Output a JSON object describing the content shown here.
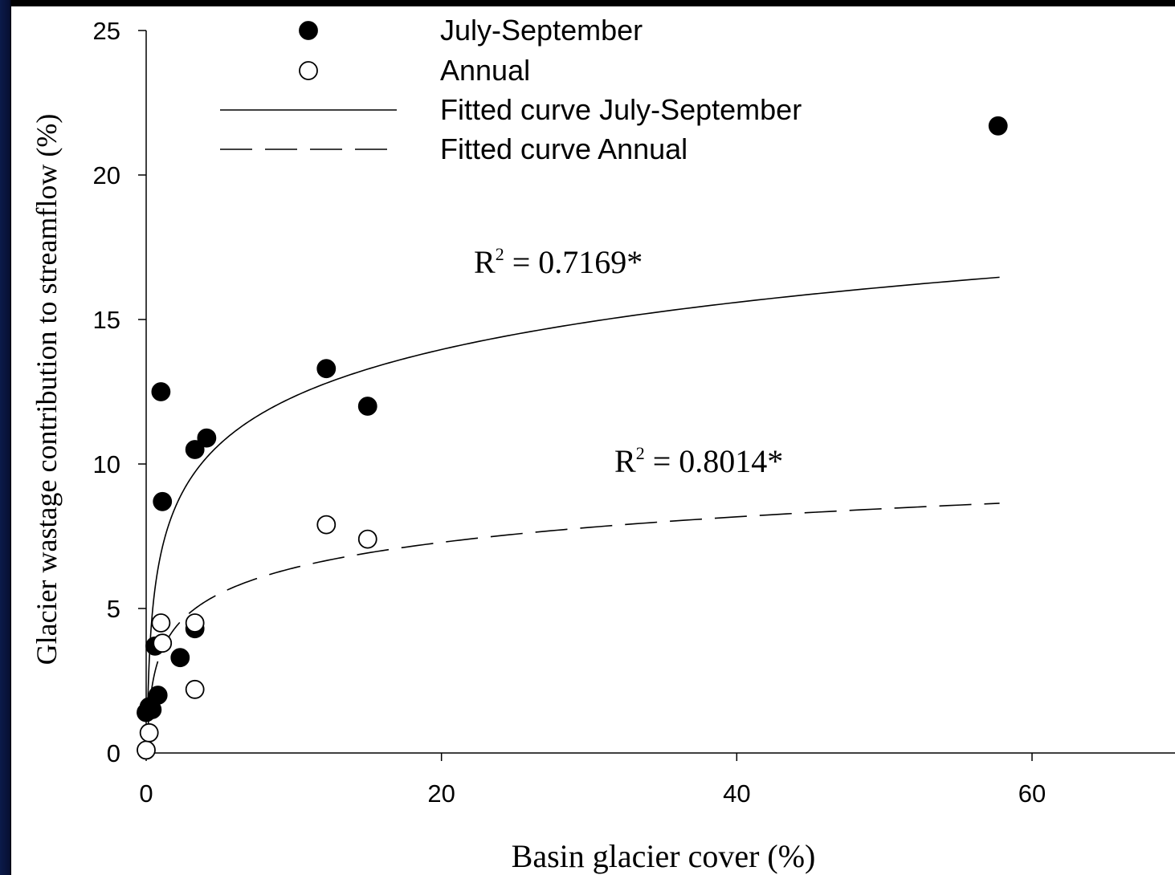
{
  "chart_data": {
    "type": "scatter",
    "title": "",
    "xlabel": "Basin glacier cover (%)",
    "ylabel": "Glacier wastage contribution to streamflow (%)",
    "xlim": [
      0,
      70
    ],
    "ylim": [
      0,
      25
    ],
    "xticks": [
      0,
      20,
      40,
      60
    ],
    "xtick_labels": [
      "0",
      "20",
      "40",
      "60"
    ],
    "yticks": [
      0,
      5,
      10,
      15,
      20,
      25
    ],
    "ytick_labels": [
      "0",
      "5",
      "10",
      "15",
      "20",
      "25"
    ],
    "grid": false,
    "legend_position": "top",
    "series": [
      {
        "name": "July-September",
        "marker": "filled-circle",
        "color": "#000000",
        "points": [
          [
            0.0,
            1.4
          ],
          [
            0.2,
            1.6
          ],
          [
            0.4,
            1.5
          ],
          [
            0.6,
            3.7
          ],
          [
            0.8,
            2.0
          ],
          [
            1.0,
            12.5
          ],
          [
            1.1,
            8.7
          ],
          [
            2.3,
            3.3
          ],
          [
            3.3,
            10.5
          ],
          [
            3.3,
            4.3
          ],
          [
            4.1,
            10.9
          ],
          [
            12.2,
            13.3
          ],
          [
            15.0,
            12.0
          ],
          [
            57.7,
            21.7
          ]
        ]
      },
      {
        "name": "Annual",
        "marker": "open-circle",
        "color": "#000000",
        "points": [
          [
            0.0,
            0.1
          ],
          [
            0.2,
            0.7
          ],
          [
            1.0,
            4.5
          ],
          [
            1.1,
            3.8
          ],
          [
            3.3,
            4.5
          ],
          [
            3.3,
            2.2
          ],
          [
            12.2,
            7.9
          ],
          [
            15.0,
            7.4
          ]
        ]
      }
    ],
    "fitted_curves": [
      {
        "name": "Fitted curve July-September",
        "style": "solid",
        "x_range": [
          0.1,
          57.8
        ],
        "sample_points": [
          [
            0.1,
            0.9
          ],
          [
            0.5,
            5.5
          ],
          [
            1,
            7.5
          ],
          [
            3.3,
            10.0
          ],
          [
            12.2,
            12.6
          ],
          [
            15,
            13.0
          ],
          [
            57.8,
            16.4
          ]
        ]
      },
      {
        "name": "Fitted curve Annual",
        "style": "dashed",
        "x_range": [
          0.1,
          57.8
        ],
        "sample_points": [
          [
            0.1,
            0.5
          ],
          [
            0.5,
            2.6
          ],
          [
            1,
            3.6
          ],
          [
            3.3,
            4.9
          ],
          [
            12.2,
            6.6
          ],
          [
            15,
            6.9
          ],
          [
            57.8,
            8.7
          ]
        ]
      }
    ],
    "annotations": [
      {
        "label": "R",
        "superscript": "2",
        "value": " = 0.7169*",
        "near": "Fitted curve July-September"
      },
      {
        "label": "R",
        "superscript": "2",
        "value": " = 0.8014*",
        "near": "Fitted curve Annual"
      }
    ]
  }
}
